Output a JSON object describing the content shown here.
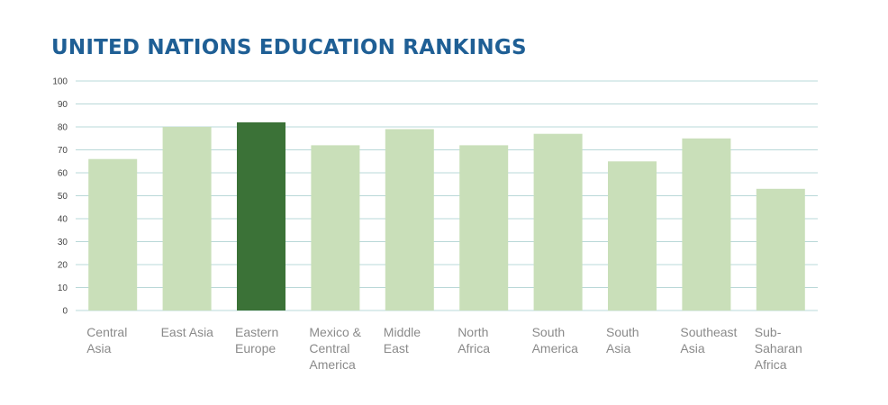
{
  "chart_data": {
    "type": "bar",
    "title": "UNITED NATIONS EDUCATION RANKINGS",
    "categories": [
      "Central\nAsia",
      "East Asia",
      "Eastern\nEurope",
      "Mexico &\nCentral\nAmerica",
      "Middle\nEast",
      "North\nAfrica",
      "South\nAmerica",
      "South\nAsia",
      "Southeast\nAsia",
      "Sub-\nSaharan\nAfrica"
    ],
    "values": [
      66,
      80,
      82,
      72,
      79,
      72,
      77,
      65,
      75,
      53
    ],
    "highlight_index": 2,
    "ylim": [
      0,
      100
    ],
    "yticks": [
      0,
      10,
      20,
      30,
      40,
      50,
      60,
      70,
      80,
      90,
      100
    ],
    "grid": true,
    "colors": {
      "bar": "#c9dfb9",
      "highlight": "#3b7237",
      "grid": "#b9d8d8",
      "title": "#1f5f95"
    }
  }
}
